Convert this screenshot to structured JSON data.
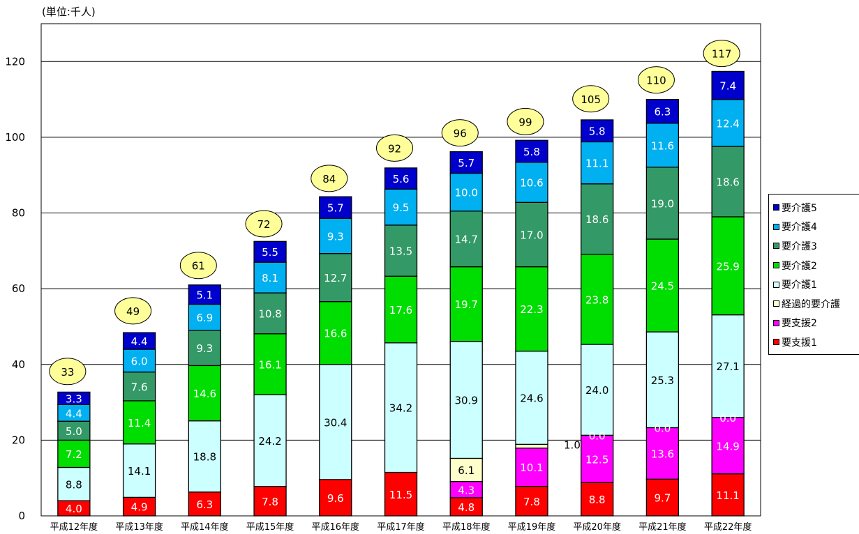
{
  "chart_data": {
    "type": "bar",
    "stacked": true,
    "unit_label": "(単位:千人)",
    "categories": [
      "平成12年度",
      "平成13年度",
      "平成14年度",
      "平成15年度",
      "平成16年度",
      "平成17年度",
      "平成18年度",
      "平成19年度",
      "平成20年度",
      "平成21年度",
      "平成22年度"
    ],
    "yticks": [
      "0",
      "20",
      "40",
      "60",
      "80",
      "100",
      "120"
    ],
    "ylim": [
      0,
      130
    ],
    "grid": true,
    "legend_position": "right",
    "totals": [
      "33",
      "49",
      "61",
      "72",
      "84",
      "92",
      "96",
      "99",
      "105",
      "110",
      "117"
    ],
    "series": [
      {
        "name": "要支援1",
        "color": "#ff0000",
        "label_color": "#ffffff",
        "values": [
          4.0,
          4.9,
          6.3,
          7.8,
          9.6,
          11.5,
          4.8,
          7.8,
          8.8,
          9.7,
          11.1
        ],
        "labels": [
          "4.0",
          "4.9",
          "6.3",
          "7.8",
          "9.6",
          "11.5",
          "4.8",
          "7.8",
          "8.8",
          "9.7",
          "11.1"
        ]
      },
      {
        "name": "要支援2",
        "color": "#ff00ff",
        "label_color": "#ffffff",
        "values": [
          0,
          0,
          0,
          0,
          0,
          0,
          4.3,
          10.1,
          12.5,
          13.6,
          14.9
        ],
        "labels": [
          "",
          "",
          "",
          "",
          "",
          "",
          "4.3",
          "10.1",
          "12.5",
          "13.6",
          "14.9"
        ]
      },
      {
        "name": "経過的要介護",
        "color": "#ffffcc",
        "label_color": "#000000",
        "values": [
          0,
          0,
          0,
          0,
          0,
          0,
          6.1,
          1.0,
          0.0,
          0.0,
          0.0
        ],
        "labels": [
          "",
          "",
          "",
          "",
          "",
          "",
          "6.1",
          "1.0",
          "0.0",
          "0.0",
          "0.0"
        ]
      },
      {
        "name": "要介護1",
        "color": "#ccffff",
        "label_color": "#000000",
        "values": [
          8.8,
          14.1,
          18.8,
          24.2,
          30.4,
          34.2,
          30.9,
          24.6,
          24.0,
          25.3,
          27.1
        ],
        "labels": [
          "8.8",
          "14.1",
          "18.8",
          "24.2",
          "30.4",
          "34.2",
          "30.9",
          "24.6",
          "24.0",
          "25.3",
          "27.1"
        ]
      },
      {
        "name": "要介護2",
        "color": "#00dd00",
        "label_color": "#ffffff",
        "values": [
          7.2,
          11.4,
          14.6,
          16.1,
          16.6,
          17.6,
          19.7,
          22.3,
          23.8,
          24.5,
          25.9
        ],
        "labels": [
          "7.2",
          "11.4",
          "14.6",
          "16.1",
          "16.6",
          "17.6",
          "19.7",
          "22.3",
          "23.8",
          "24.5",
          "25.9"
        ]
      },
      {
        "name": "要介護3",
        "color": "#339966",
        "label_color": "#ffffff",
        "values": [
          5.0,
          7.6,
          9.3,
          10.8,
          12.7,
          13.5,
          14.7,
          17.0,
          18.6,
          19.0,
          18.6
        ],
        "labels": [
          "5.0",
          "7.6",
          "9.3",
          "10.8",
          "12.7",
          "13.5",
          "14.7",
          "17.0",
          "18.6",
          "19.0",
          "18.6"
        ]
      },
      {
        "name": "要介護4",
        "color": "#00b0f0",
        "label_color": "#ffffff",
        "values": [
          4.4,
          6.0,
          6.9,
          8.1,
          9.3,
          9.5,
          10.0,
          10.6,
          11.1,
          11.6,
          12.4
        ],
        "labels": [
          "4.4",
          "6.0",
          "6.9",
          "8.1",
          "9.3",
          "9.5",
          "10.0",
          "10.6",
          "11.1",
          "11.6",
          "12.4"
        ]
      },
      {
        "name": "要介護5",
        "color": "#0000cc",
        "label_color": "#ffffff",
        "values": [
          3.3,
          4.4,
          5.1,
          5.5,
          5.7,
          5.6,
          5.7,
          5.8,
          5.8,
          6.3,
          7.4
        ],
        "labels": [
          "3.3",
          "4.4",
          "5.1",
          "5.5",
          "5.7",
          "5.6",
          "5.7",
          "5.8",
          "5.8",
          "6.3",
          "7.4"
        ]
      }
    ],
    "legend_order": [
      "要介護5",
      "要介護4",
      "要介護3",
      "要介護2",
      "要介護1",
      "経過的要介護",
      "要支援2",
      "要支援1"
    ]
  }
}
